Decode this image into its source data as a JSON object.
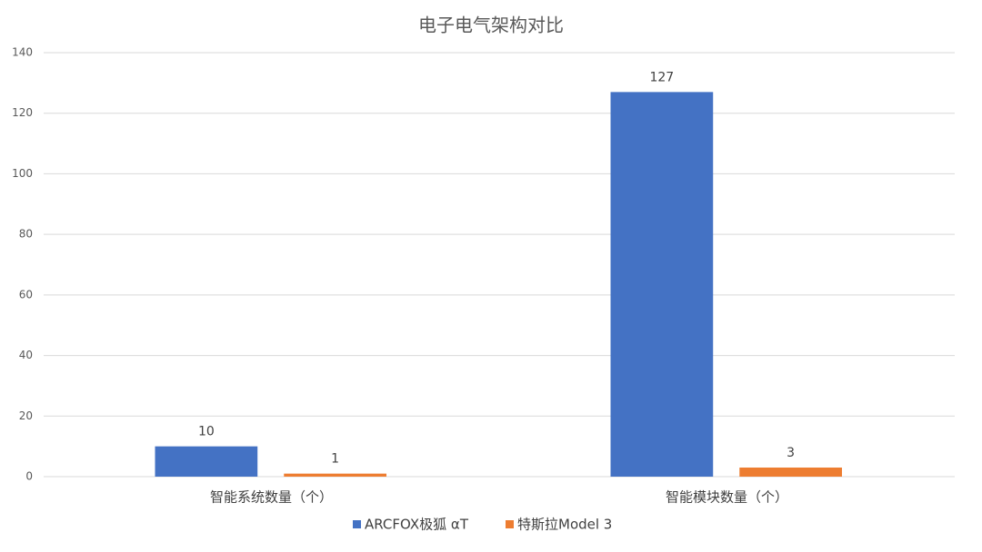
{
  "chart_data": {
    "type": "bar",
    "title": "电子电气架构对比",
    "categories": [
      "智能系统数量（个）",
      "智能模块数量（个）"
    ],
    "series": [
      {
        "name": "ARCFOX极狐 αT",
        "color": "#4472c4",
        "values": [
          10,
          127
        ]
      },
      {
        "name": "特斯拉Model 3",
        "color": "#ed7d31",
        "values": [
          1,
          3
        ]
      }
    ],
    "ylim": [
      0,
      140
    ],
    "yticks": [
      0,
      20,
      40,
      60,
      80,
      100,
      120,
      140
    ],
    "grid": true,
    "legend": "bottom"
  }
}
